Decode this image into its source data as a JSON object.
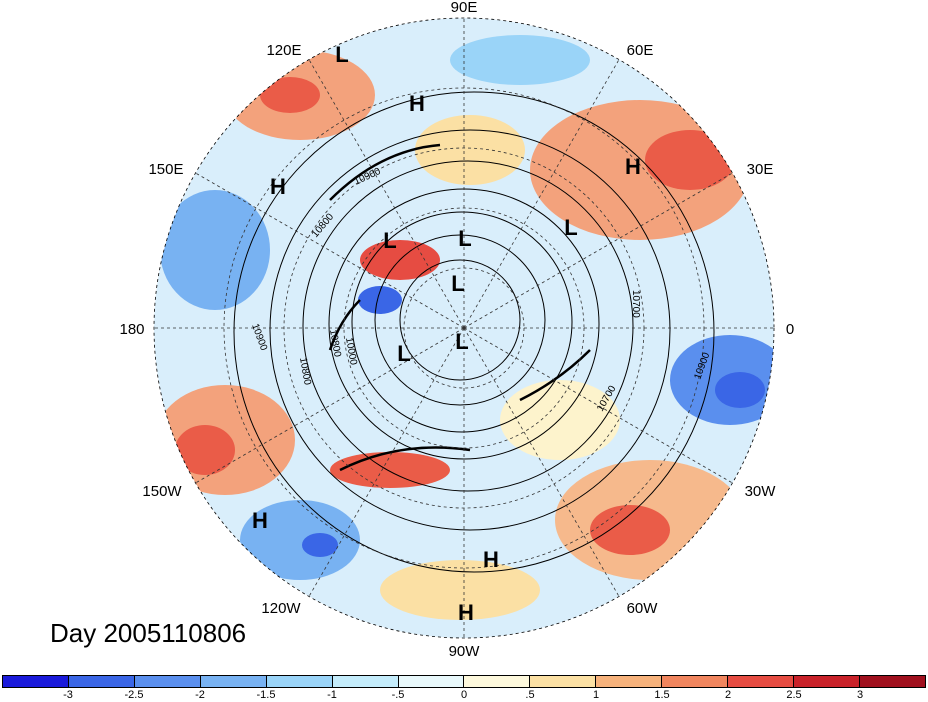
{
  "longitude_labels": [
    "90E",
    "60E",
    "30E",
    "0",
    "30W",
    "60W",
    "90W",
    "120W",
    "150W",
    "180",
    "150E",
    "120E"
  ],
  "pressure_systems": [
    {
      "type": "L"
    },
    {
      "type": "H"
    },
    {
      "type": "H"
    },
    {
      "type": "H"
    },
    {
      "type": "L"
    },
    {
      "type": "L"
    },
    {
      "type": "L"
    },
    {
      "type": "L"
    },
    {
      "type": "L"
    },
    {
      "type": "L"
    },
    {
      "type": "H"
    },
    {
      "type": "H"
    },
    {
      "type": "H"
    }
  ],
  "contour_labels": [
    "10900",
    "10900",
    "10800",
    "10000",
    "10800",
    "10700",
    "10700",
    "10900",
    "10800"
  ],
  "day_label": "Day 2005110806",
  "colorbar": {
    "ticks": [
      "-3",
      "-2.5",
      "-2",
      "-1.5",
      "-1",
      "-.5",
      "0",
      ".5",
      "1",
      "1.5",
      "2",
      "2.5",
      "3"
    ],
    "colors": [
      "#1a1adb",
      "#3a66e6",
      "#5a8fee",
      "#78b2f2",
      "#9ad4f8",
      "#c4ecfb",
      "#e8f8fb",
      "#fdf8dc",
      "#fbe0a4",
      "#f6b27c",
      "#f0855e",
      "#e64c42",
      "#c9222a",
      "#a0101e"
    ]
  }
}
